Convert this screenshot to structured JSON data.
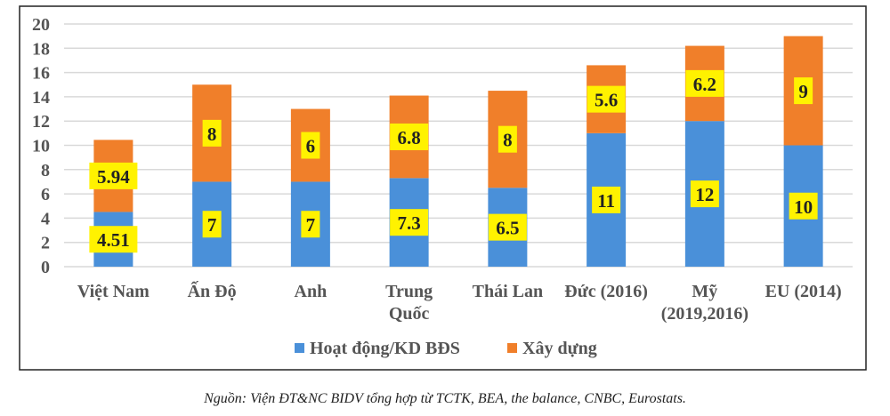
{
  "chart_data": {
    "type": "bar",
    "stacked": true,
    "categories": [
      "Việt Nam",
      "Ấn Độ",
      "Anh",
      "Trung Quốc",
      "Thái Lan",
      "Đức (2016)",
      "Mỹ (2019,2016)",
      "EU (2014)"
    ],
    "category_lines": [
      [
        "Việt Nam"
      ],
      [
        "Ấn Độ"
      ],
      [
        "Anh"
      ],
      [
        "Trung",
        "Quốc"
      ],
      [
        "Thái Lan"
      ],
      [
        "Đức (2016)"
      ],
      [
        "Mỹ",
        "(2019,2016)"
      ],
      [
        "EU (2014)"
      ]
    ],
    "series": [
      {
        "name": "Hoạt động/KD BĐS",
        "color": "#4A90D9",
        "values": [
          4.51,
          7,
          7,
          7.3,
          6.5,
          11,
          12,
          10
        ],
        "labels": [
          "4.51",
          "7",
          "7",
          "7.3",
          "6.5",
          "11",
          "12",
          "10"
        ]
      },
      {
        "name": "Xây dựng",
        "color": "#F07F2A",
        "values": [
          5.94,
          8,
          6,
          6.8,
          8,
          5.6,
          6.2,
          9
        ],
        "labels": [
          "5.94",
          "8",
          "6",
          "6.8",
          "8",
          "5.6",
          "6.2",
          "9"
        ]
      }
    ],
    "ylim": [
      0,
      20
    ],
    "yticks": [
      0,
      2,
      4,
      6,
      8,
      10,
      12,
      14,
      16,
      18,
      20
    ],
    "grid": true,
    "legend_position": "bottom",
    "label_box_color": "#FFF200"
  },
  "source_note": "Nguồn: Viện ĐT&NC BIDV tổng hợp từ TCTK, BEA, the balance, CNBC, Eurostats."
}
